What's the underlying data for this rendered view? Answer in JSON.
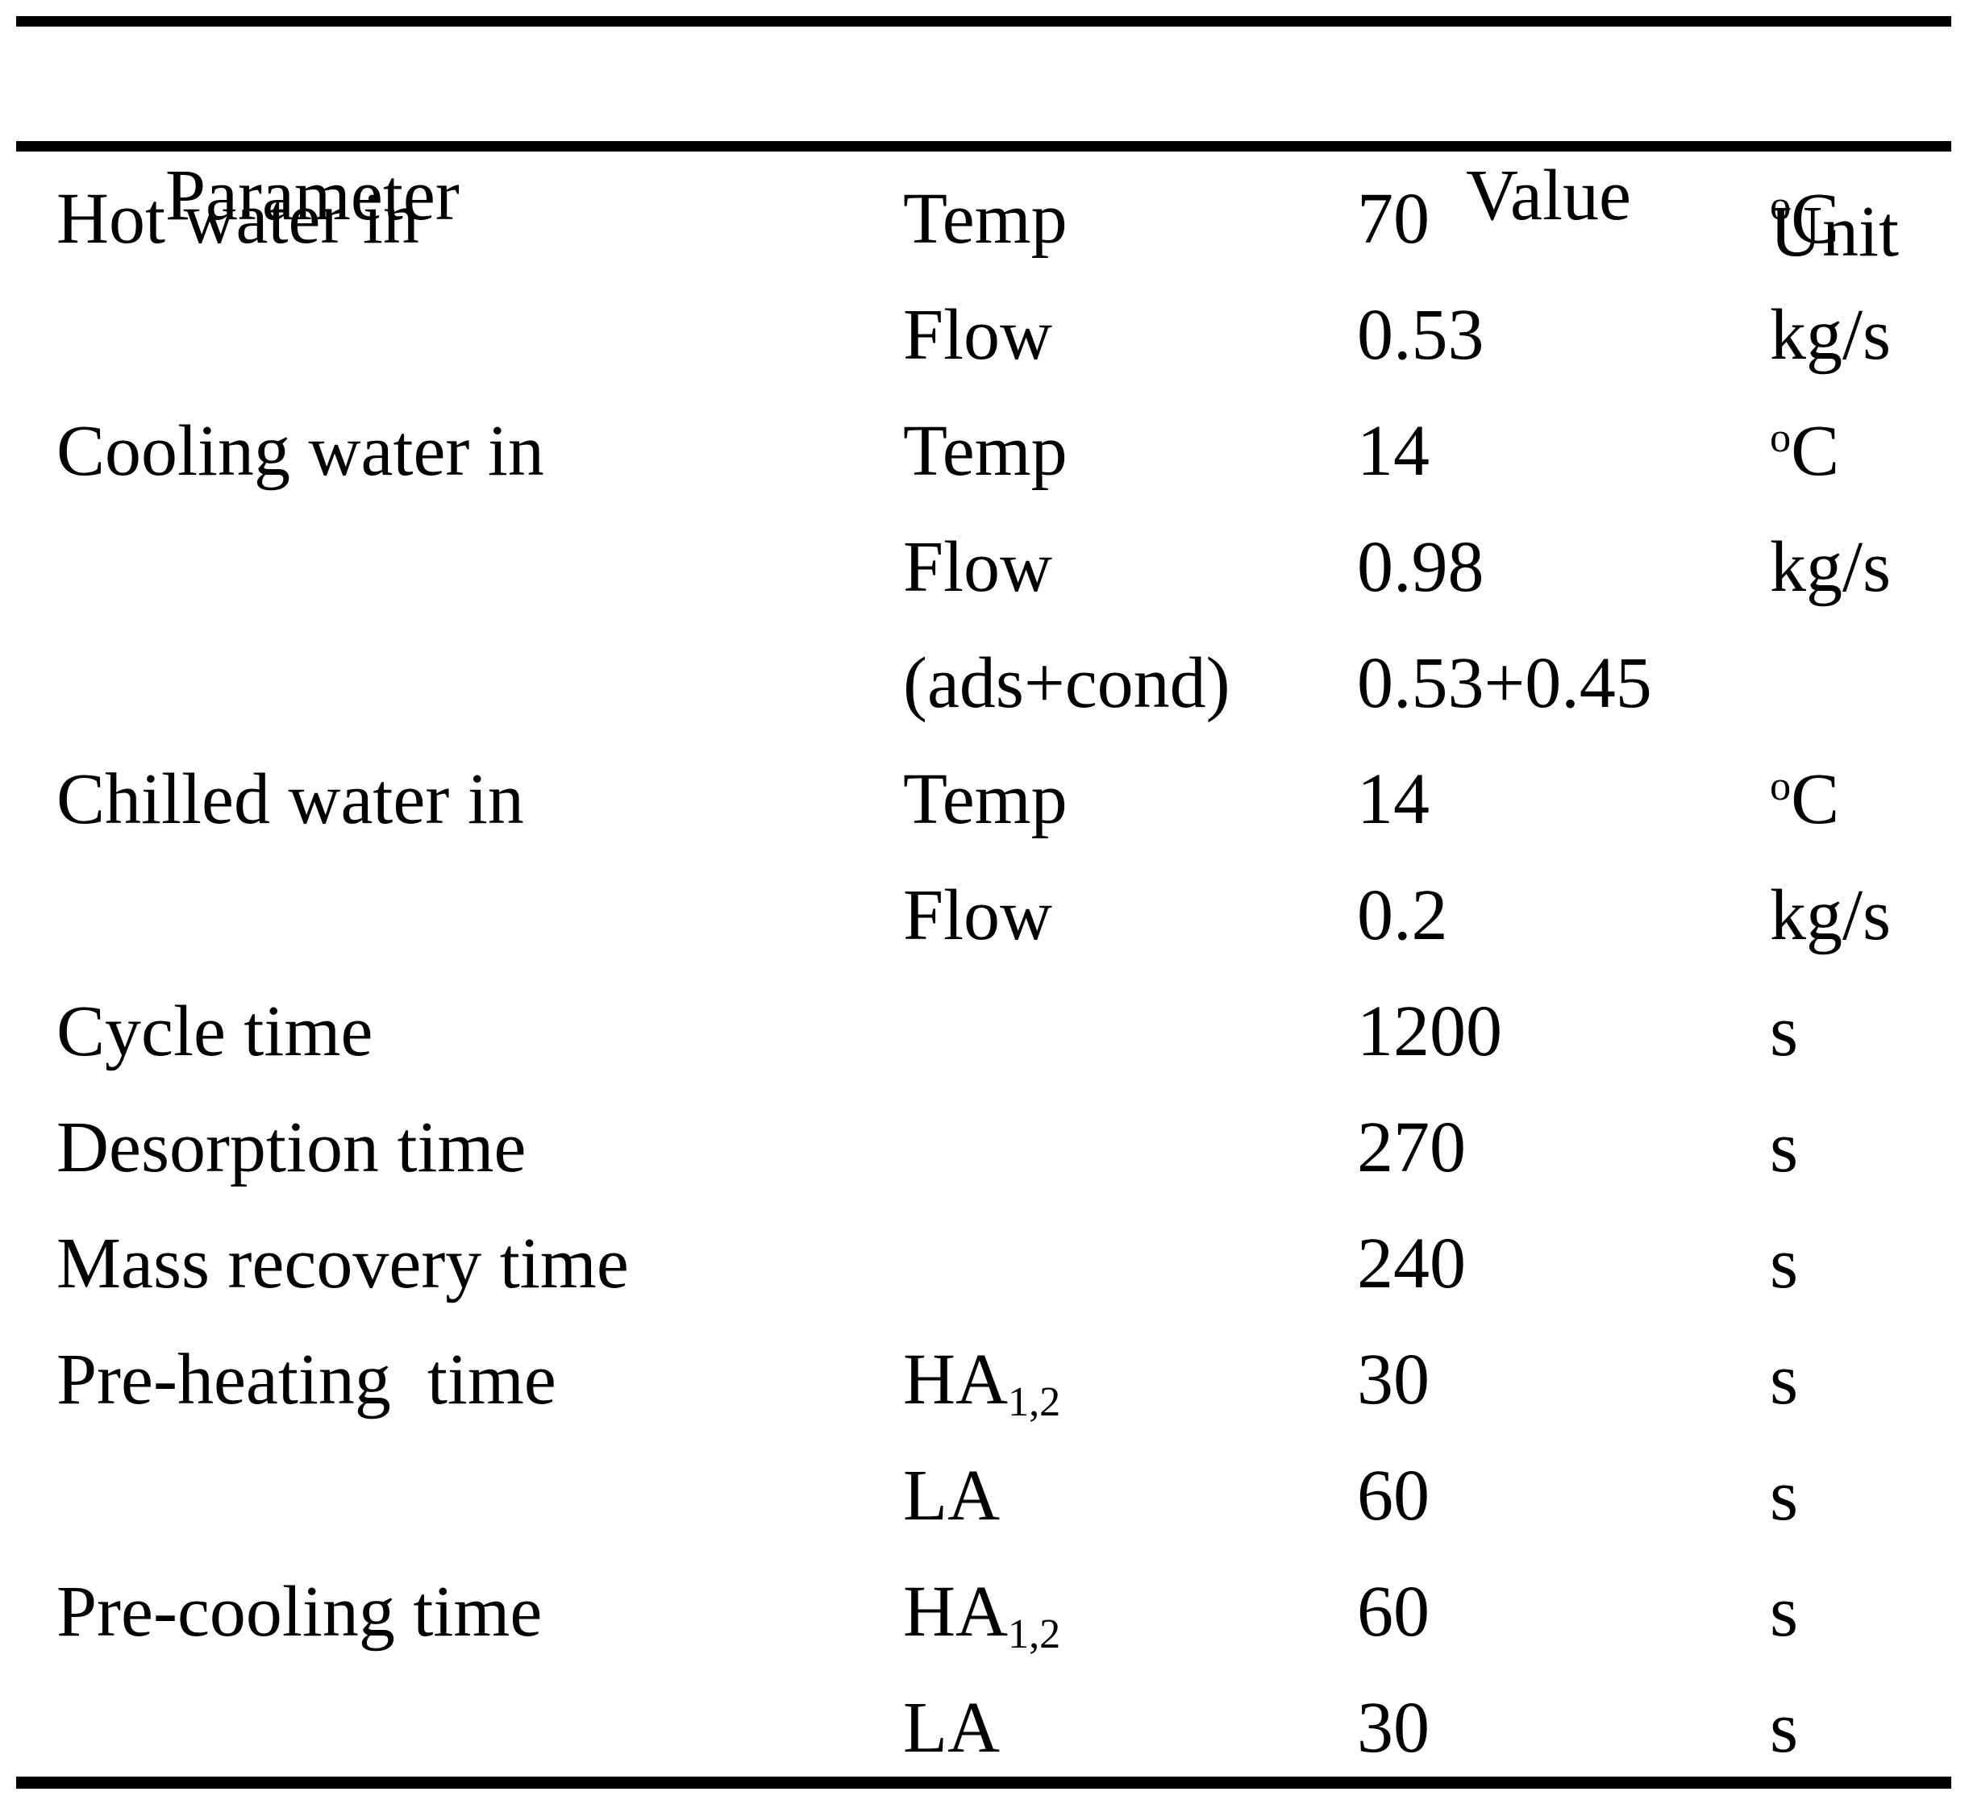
{
  "table": {
    "headers": {
      "parameter": "Parameter",
      "value": "Value",
      "unit": "Unit"
    },
    "rows": [
      {
        "param": "Hot water in",
        "sub": {
          "text": "Temp"
        },
        "value": "70",
        "unit": {
          "sup": "o",
          "text": "C"
        }
      },
      {
        "param": "",
        "sub": {
          "text": "Flow"
        },
        "value": "0.53",
        "unit": {
          "text": "kg/s"
        }
      },
      {
        "param": "Cooling water in",
        "sub": {
          "text": "Temp"
        },
        "value": "14",
        "unit": {
          "sup": "o",
          "text": "C"
        }
      },
      {
        "param": "",
        "sub": {
          "text": "Flow"
        },
        "value": "0.98",
        "unit": {
          "text": "kg/s"
        }
      },
      {
        "param": "",
        "sub": {
          "text": "(ads+cond)"
        },
        "value": "0.53+0.45",
        "unit": {
          "text": ""
        }
      },
      {
        "param": "Chilled water in",
        "sub": {
          "text": "Temp"
        },
        "value": "14",
        "unit": {
          "sup": "o",
          "text": "C"
        }
      },
      {
        "param": "",
        "sub": {
          "text": "Flow"
        },
        "value": "0.2",
        "unit": {
          "text": "kg/s"
        }
      },
      {
        "param": "Cycle time",
        "sub": {
          "text": ""
        },
        "value": "1200",
        "unit": {
          "text": "s"
        }
      },
      {
        "param": "Desorption time",
        "sub": {
          "text": ""
        },
        "value": "270",
        "unit": {
          "text": "s"
        }
      },
      {
        "param": "Mass recovery time",
        "sub": {
          "text": ""
        },
        "value": "240",
        "unit": {
          "text": "s"
        }
      },
      {
        "param": "Pre-heating  time",
        "sub": {
          "text": "HA",
          "subscript": "1,2"
        },
        "value": "30",
        "unit": {
          "text": "s"
        }
      },
      {
        "param": "",
        "sub": {
          "text": "LA"
        },
        "value": "60",
        "unit": {
          "text": "s"
        }
      },
      {
        "param": "Pre-cooling time",
        "sub": {
          "text": "HA",
          "subscript": "1,2"
        },
        "value": "60",
        "unit": {
          "text": "s"
        }
      },
      {
        "param": "",
        "sub": {
          "text": "LA"
        },
        "value": "30",
        "unit": {
          "text": "s"
        }
      }
    ]
  }
}
